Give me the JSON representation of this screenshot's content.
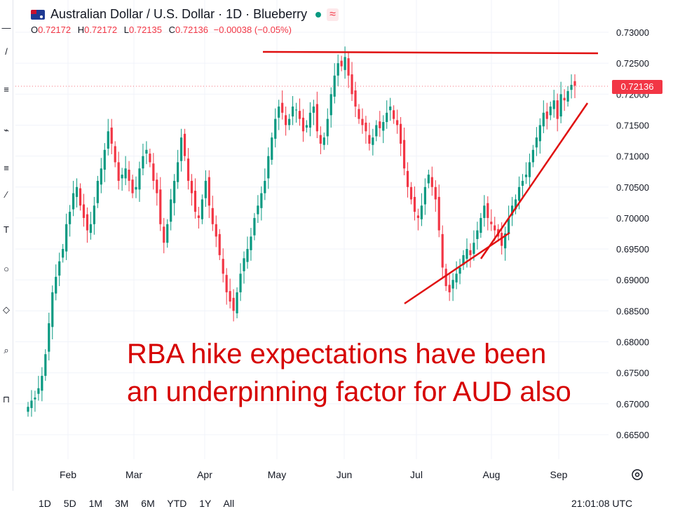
{
  "header": {
    "symbol_title": "Australian Dollar / U.S. Dollar · 1D · Blueberry",
    "wave_icon": "≈",
    "ohlc": {
      "open_label": "O",
      "open": "0.72172",
      "high_label": "H",
      "high": "0.72172",
      "low_label": "L",
      "low": "0.72135",
      "close_label": "C",
      "close": "0.72136",
      "change": "−0.00038 (−0.05%)"
    }
  },
  "price_tag": "0.72136",
  "annotation": {
    "line1": "RBA hike expectations have been",
    "line2": "an underpinning factor for AUD also"
  },
  "timeframes": [
    "1D",
    "5D",
    "1M",
    "3M",
    "6M",
    "YTD",
    "1Y",
    "All"
  ],
  "clock": "21:01:08 UTC",
  "colors": {
    "up": "#089981",
    "down": "#f23645",
    "drawing": "#e01010",
    "annotation": "#d60000"
  },
  "chart_data": {
    "type": "candlestick",
    "x_ticks": [
      "Feb",
      "Mar",
      "Apr",
      "May",
      "Jun",
      "Jul",
      "Aug",
      "Sep"
    ],
    "y_ticks": [
      "0.73000",
      "0.72500",
      "0.72000",
      "0.71500",
      "0.71000",
      "0.70500",
      "0.70000",
      "0.69500",
      "0.69000",
      "0.68500",
      "0.68000",
      "0.67500",
      "0.67000",
      "0.66500"
    ],
    "ylim": [
      0.6625,
      0.7325
    ],
    "last_price": 0.72136,
    "closes": [
      0.6695,
      0.6705,
      0.671,
      0.6725,
      0.6745,
      0.678,
      0.683,
      0.688,
      0.6905,
      0.693,
      0.695,
      0.699,
      0.701,
      0.704,
      0.705,
      0.702,
      0.7,
      0.698,
      0.699,
      0.702,
      0.706,
      0.708,
      0.711,
      0.714,
      0.712,
      0.709,
      0.706,
      0.707,
      0.708,
      0.706,
      0.704,
      0.705,
      0.708,
      0.71,
      0.711,
      0.709,
      0.706,
      0.704,
      0.699,
      0.696,
      0.699,
      0.703,
      0.706,
      0.709,
      0.713,
      0.71,
      0.706,
      0.704,
      0.701,
      0.7,
      0.703,
      0.706,
      0.702,
      0.699,
      0.697,
      0.694,
      0.691,
      0.688,
      0.6865,
      0.685,
      0.688,
      0.691,
      0.6935,
      0.695,
      0.697,
      0.7,
      0.702,
      0.704,
      0.706,
      0.71,
      0.713,
      0.716,
      0.718,
      0.717,
      0.715,
      0.716,
      0.718,
      0.7175,
      0.716,
      0.714,
      0.715,
      0.717,
      0.718,
      0.714,
      0.712,
      0.713,
      0.716,
      0.72,
      0.723,
      0.725,
      0.7245,
      0.726,
      0.723,
      0.72,
      0.718,
      0.716,
      0.715,
      0.714,
      0.712,
      0.713,
      0.715,
      0.7145,
      0.7155,
      0.717,
      0.718,
      0.716,
      0.715,
      0.712,
      0.708,
      0.705,
      0.703,
      0.701,
      0.7,
      0.702,
      0.705,
      0.707,
      0.705,
      0.703,
      0.698,
      0.692,
      0.689,
      0.688,
      0.69,
      0.691,
      0.692,
      0.694,
      0.695,
      0.694,
      0.696,
      0.698,
      0.7,
      0.702,
      0.7,
      0.699,
      0.698,
      0.697,
      0.6955,
      0.6975,
      0.7,
      0.702,
      0.703,
      0.705,
      0.706,
      0.707,
      0.709,
      0.711,
      0.713,
      0.715,
      0.717,
      0.716,
      0.718,
      0.719,
      0.716,
      0.72,
      0.719,
      0.7205,
      0.7215,
      0.72136
    ],
    "trendlines": [
      {
        "name": "resistance",
        "points": [
          [
            "Apr end",
            0.7268
          ],
          [
            "mid Sep",
            0.7266
          ]
        ]
      },
      {
        "name": "support-jul",
        "points": [
          [
            "Jun end",
            0.6865
          ],
          [
            "Aug mid",
            0.6975
          ]
        ]
      },
      {
        "name": "support-aug",
        "points": [
          [
            "late Jul",
            0.6942
          ],
          [
            "mid Sep",
            0.7185
          ]
        ]
      }
    ]
  }
}
